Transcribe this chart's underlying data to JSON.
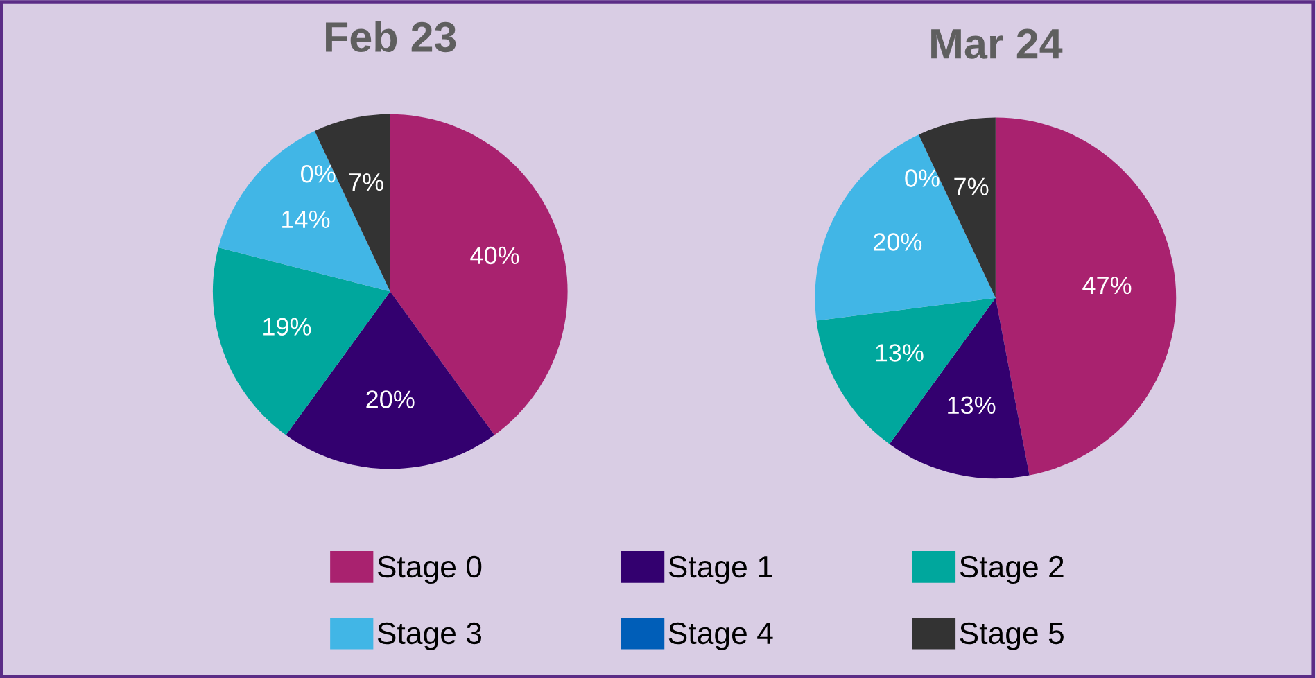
{
  "chart_data": [
    {
      "type": "pie",
      "title": "Feb 23",
      "categories": [
        "Stage 0",
        "Stage 1",
        "Stage 2",
        "Stage 3",
        "Stage 4",
        "Stage 5"
      ],
      "values": [
        40,
        20,
        19,
        14,
        0,
        7
      ],
      "value_labels": [
        "40%",
        "20%",
        "19%",
        "14%",
        "0%",
        "7%"
      ],
      "colors": [
        "#a9226f",
        "#33006f",
        "#00a79d",
        "#41b6e6",
        "#005eb8",
        "#333333"
      ],
      "legend": "bottom"
    },
    {
      "type": "pie",
      "title": "Mar 24",
      "categories": [
        null,
        null,
        null,
        null,
        null,
        null
      ],
      "values": [
        47,
        13,
        13,
        20,
        0,
        7
      ],
      "value_labels": [
        "47%",
        "13%",
        "13%",
        "20%",
        "0%",
        "7%"
      ],
      "colors": [
        "#a9226f",
        "#33006f",
        "#00a79d",
        "#41b6e6",
        "#005eb8",
        "#333333"
      ]
    }
  ]
}
